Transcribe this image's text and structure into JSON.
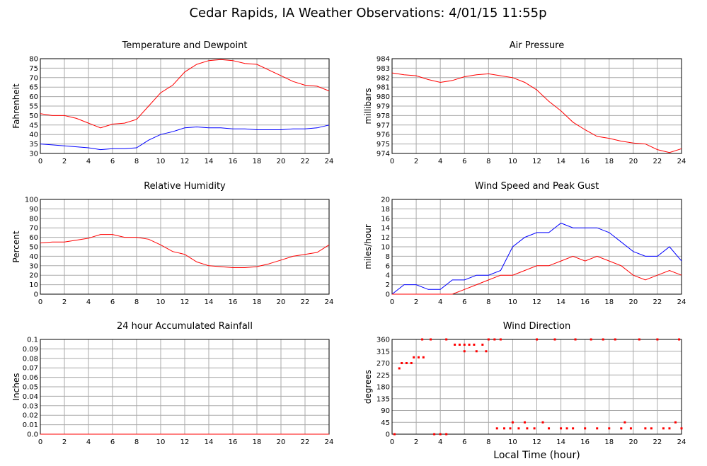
{
  "title": "Cedar Rapids, IA Weather Observations: 4/01/15 11:55p",
  "chart_data": [
    {
      "type": "line",
      "title": "Temperature and Dewpoint",
      "ylabel": "Fahrenheit",
      "x": [
        0,
        1,
        2,
        3,
        4,
        5,
        6,
        7,
        8,
        9,
        10,
        11,
        12,
        13,
        14,
        15,
        16,
        17,
        18,
        19,
        20,
        21,
        22,
        23,
        24
      ],
      "series": [
        {
          "color": "#ff0000",
          "values": [
            51,
            50,
            50,
            48.5,
            46,
            43.5,
            45.5,
            46,
            48,
            55,
            62,
            66,
            73,
            77,
            79,
            79.5,
            79,
            77.5,
            77,
            74,
            71,
            68,
            66,
            65.5,
            63
          ]
        },
        {
          "color": "#0000ff",
          "values": [
            35,
            34.5,
            34,
            33.5,
            33,
            32,
            32.5,
            32.5,
            33,
            37,
            40,
            41.5,
            43.5,
            44,
            43.5,
            43.5,
            43,
            43,
            42.5,
            42.5,
            42.5,
            43,
            43,
            43.5,
            45
          ]
        }
      ],
      "xlim": [
        0,
        24
      ],
      "xticks": [
        0,
        2,
        4,
        6,
        8,
        10,
        12,
        14,
        16,
        18,
        20,
        22,
        24
      ],
      "ylim": [
        30,
        80
      ],
      "yticks": [
        30,
        35,
        40,
        45,
        50,
        55,
        60,
        65,
        70,
        75,
        80
      ],
      "grid": true
    },
    {
      "type": "line",
      "title": "Air Pressure",
      "ylabel": "millibars",
      "x": [
        0,
        1,
        2,
        3,
        4,
        5,
        6,
        7,
        8,
        9,
        10,
        11,
        12,
        13,
        14,
        15,
        16,
        17,
        18,
        19,
        20,
        21,
        22,
        23,
        24
      ],
      "series": [
        {
          "color": "#ff0000",
          "values": [
            982.5,
            982.3,
            982.2,
            981.8,
            981.5,
            981.7,
            982.1,
            982.3,
            982.4,
            982.2,
            982.0,
            981.5,
            980.7,
            979.5,
            978.5,
            977.3,
            976.5,
            975.8,
            975.6,
            975.3,
            975.1,
            975.0,
            974.4,
            974.1,
            974.5
          ]
        }
      ],
      "xlim": [
        0,
        24
      ],
      "xticks": [
        0,
        2,
        4,
        6,
        8,
        10,
        12,
        14,
        16,
        18,
        20,
        22,
        24
      ],
      "ylim": [
        974,
        984
      ],
      "yticks": [
        974,
        975,
        976,
        977,
        978,
        979,
        980,
        981,
        982,
        983,
        984
      ],
      "grid": true
    },
    {
      "type": "line",
      "title": "Relative Humidity",
      "ylabel": "Percent",
      "x": [
        0,
        1,
        2,
        3,
        4,
        5,
        6,
        7,
        8,
        9,
        10,
        11,
        12,
        13,
        14,
        15,
        16,
        17,
        18,
        19,
        20,
        21,
        22,
        23,
        24
      ],
      "series": [
        {
          "color": "#ff0000",
          "values": [
            54,
            55,
            55,
            57,
            59,
            63,
            63,
            60,
            60,
            58,
            52,
            45,
            42,
            34,
            30,
            29,
            28,
            28,
            29,
            32,
            36,
            40,
            42,
            44,
            52
          ]
        }
      ],
      "xlim": [
        0,
        24
      ],
      "xticks": [
        0,
        2,
        4,
        6,
        8,
        10,
        12,
        14,
        16,
        18,
        20,
        22,
        24
      ],
      "ylim": [
        0,
        100
      ],
      "yticks": [
        0,
        10,
        20,
        30,
        40,
        50,
        60,
        70,
        80,
        90,
        100
      ],
      "grid": true
    },
    {
      "type": "line",
      "title": "Wind Speed and Peak Gust",
      "ylabel": "miles/hour",
      "x": [
        0,
        1,
        2,
        3,
        4,
        5,
        6,
        7,
        8,
        9,
        10,
        11,
        12,
        13,
        14,
        15,
        16,
        17,
        18,
        19,
        20,
        21,
        22,
        23,
        24
      ],
      "series": [
        {
          "color": "#0000ff",
          "values": [
            0,
            2,
            2,
            1,
            1,
            3,
            3,
            4,
            4,
            5,
            10,
            12,
            13,
            13,
            15,
            14,
            14,
            14,
            13,
            11,
            9,
            8,
            8,
            10,
            7
          ]
        },
        {
          "color": "#ff0000",
          "values": [
            0,
            0,
            0,
            0,
            0,
            0,
            1,
            2,
            3,
            4,
            4,
            5,
            6,
            6,
            7,
            8,
            7,
            8,
            7,
            6,
            4,
            3,
            4,
            5,
            4
          ]
        }
      ],
      "xlim": [
        0,
        24
      ],
      "xticks": [
        0,
        2,
        4,
        6,
        8,
        10,
        12,
        14,
        16,
        18,
        20,
        22,
        24
      ],
      "ylim": [
        0,
        20
      ],
      "yticks": [
        0,
        2,
        4,
        6,
        8,
        10,
        12,
        14,
        16,
        18,
        20
      ],
      "grid": true
    },
    {
      "type": "line",
      "title": "24 hour Accumulated Rainfall",
      "ylabel": "Inches",
      "x": [
        0,
        1,
        2,
        3,
        4,
        5,
        6,
        7,
        8,
        9,
        10,
        11,
        12,
        13,
        14,
        15,
        16,
        17,
        18,
        19,
        20,
        21,
        22,
        23,
        24
      ],
      "series": [
        {
          "color": "#ff0000",
          "values": [
            0,
            0,
            0,
            0,
            0,
            0,
            0,
            0,
            0,
            0,
            0,
            0,
            0,
            0,
            0,
            0,
            0,
            0,
            0,
            0,
            0,
            0,
            0,
            0,
            0
          ]
        }
      ],
      "xlim": [
        0,
        24
      ],
      "xticks": [
        0,
        2,
        4,
        6,
        8,
        10,
        12,
        14,
        16,
        18,
        20,
        22,
        24
      ],
      "ylim": [
        0,
        0.1
      ],
      "yticks": [
        {
          "value": 0,
          "label": "0.0"
        },
        0.01,
        0.02,
        0.03,
        0.04,
        0.05,
        0.06,
        0.07,
        0.08,
        0.09,
        0.1
      ],
      "grid": true
    },
    {
      "type": "scatter",
      "title": "Wind Direction",
      "ylabel": "degrees",
      "xlabel": "Local Time (hour)",
      "x": [
        0.2,
        0.6,
        0.8,
        1.2,
        1.6,
        1.8,
        2.2,
        2.6,
        2.5,
        3.5,
        4,
        4.5,
        3.2,
        4.5,
        5.2,
        5.6,
        6,
        6.4,
        6.8,
        6,
        7,
        7.5,
        7.8,
        8,
        8.5,
        8.7,
        9,
        9.3,
        9.8,
        10,
        10.5,
        11,
        11.2,
        11.8,
        12,
        12.5,
        13,
        13.5,
        14,
        14.5,
        15,
        15.2,
        16,
        16.5,
        17,
        17.5,
        18,
        18.5,
        19,
        19.3,
        19.8,
        20.5,
        21,
        21.5,
        22,
        22.5,
        23,
        23.5,
        23.8,
        24
      ],
      "series": [
        {
          "color": "#ff0000",
          "values": [
            0,
            250,
            270,
            270,
            270,
            292,
            292,
            292,
            360,
            0,
            0,
            0,
            360,
            360,
            340,
            340,
            340,
            340,
            340,
            315,
            315,
            340,
            315,
            360,
            360,
            22,
            360,
            22,
            22,
            45,
            22,
            45,
            22,
            22,
            360,
            45,
            22,
            360,
            22,
            22,
            22,
            360,
            22,
            360,
            22,
            360,
            22,
            360,
            22,
            45,
            22,
            360,
            22,
            22,
            360,
            22,
            22,
            45,
            360,
            22
          ]
        }
      ],
      "xlim": [
        0,
        24
      ],
      "xticks": [
        0,
        2,
        4,
        6,
        8,
        10,
        12,
        14,
        16,
        18,
        20,
        22,
        24
      ],
      "ylim": [
        0,
        360
      ],
      "yticks": [
        0,
        45,
        90,
        135,
        180,
        225,
        270,
        315,
        360
      ],
      "grid": true
    }
  ]
}
